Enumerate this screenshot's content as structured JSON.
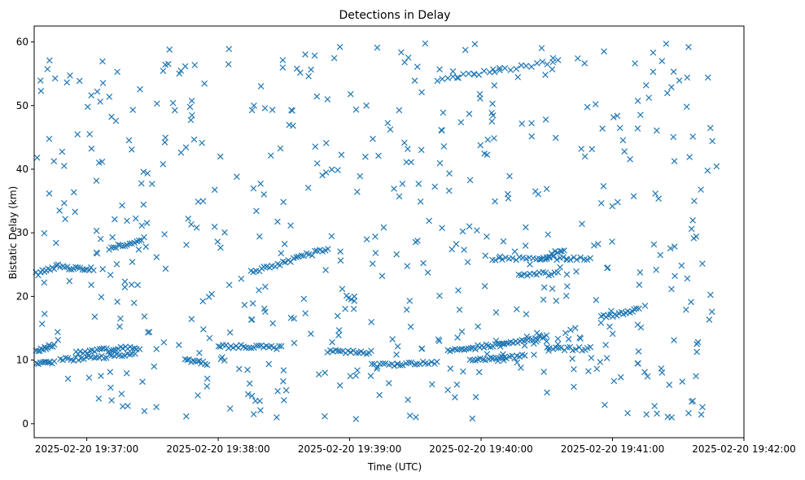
{
  "chart_data": {
    "type": "scatter",
    "title": "Detections in Delay",
    "xlabel": "Time (UTC)",
    "ylabel": "Bistatic Delay (km)",
    "marker": "x",
    "color": "#1f77b4",
    "grid": false,
    "x_tick_labels": [
      "2025-02-20 19:37:00",
      "2025-02-20 19:38:00",
      "2025-02-20 19:39:00",
      "2025-02-20 19:40:00",
      "2025-02-20 19:41:00",
      "2025-02-20 19:42:00"
    ],
    "y_ticks": [
      0,
      10,
      20,
      30,
      40,
      50,
      60
    ],
    "x_range": [
      "2025-02-20 19:36:36",
      "2025-02-20 19:42:00"
    ],
    "ylim": [
      -2.2,
      62.5
    ],
    "tracks": [
      {
        "t_start": "2025-02-20 19:36:37",
        "t_end": "2025-02-20 19:36:45",
        "delay_start": 11.5,
        "delay_end": 12.3,
        "points": 12
      },
      {
        "t_start": "2025-02-20 19:36:37",
        "t_end": "2025-02-20 19:36:45",
        "delay_start": 9.2,
        "delay_end": 9.8,
        "points": 10
      },
      {
        "t_start": "2025-02-20 19:36:37",
        "t_end": "2025-02-20 19:36:47",
        "delay_start": 23.5,
        "delay_end": 24.8,
        "points": 12
      },
      {
        "t_start": "2025-02-20 19:36:48",
        "t_end": "2025-02-20 19:37:03",
        "delay_start": 24.5,
        "delay_end": 24.3,
        "points": 16
      },
      {
        "t_start": "2025-02-20 19:36:48",
        "t_end": "2025-02-20 19:37:22",
        "delay_start": 10.0,
        "delay_end": 10.9,
        "points": 30
      },
      {
        "t_start": "2025-02-20 19:36:55",
        "t_end": "2025-02-20 19:37:24",
        "delay_start": 11.2,
        "delay_end": 12.0,
        "points": 28
      },
      {
        "t_start": "2025-02-20 19:37:10",
        "t_end": "2025-02-20 19:37:26",
        "delay_start": 27.5,
        "delay_end": 29.0,
        "points": 16
      },
      {
        "t_start": "2025-02-20 19:37:45",
        "t_end": "2025-02-20 19:37:55",
        "delay_start": 10.0,
        "delay_end": 9.5,
        "points": 12
      },
      {
        "t_start": "2025-02-20 19:38:15",
        "t_end": "2025-02-20 19:38:50",
        "delay_start": 23.8,
        "delay_end": 27.5,
        "points": 30
      },
      {
        "t_start": "2025-02-20 19:38:00",
        "t_end": "2025-02-20 19:38:29",
        "delay_start": 12.2,
        "delay_end": 12.0,
        "points": 26
      },
      {
        "t_start": "2025-02-20 19:38:50",
        "t_end": "2025-02-20 19:39:10",
        "delay_start": 11.5,
        "delay_end": 11.2,
        "points": 18
      },
      {
        "t_start": "2025-02-20 19:39:10",
        "t_end": "2025-02-20 19:39:40",
        "delay_start": 9.2,
        "delay_end": 9.6,
        "points": 24
      },
      {
        "t_start": "2025-02-20 19:39:45",
        "t_end": "2025-02-20 19:40:30",
        "delay_start": 11.4,
        "delay_end": 13.6,
        "points": 45
      },
      {
        "t_start": "2025-02-20 19:39:55",
        "t_end": "2025-02-20 19:40:20",
        "delay_start": 9.8,
        "delay_end": 10.7,
        "points": 22
      },
      {
        "t_start": "2025-02-20 19:40:05",
        "t_end": "2025-02-20 19:40:50",
        "delay_start": 26.0,
        "delay_end": 26.0,
        "points": 30
      },
      {
        "t_start": "2025-02-20 19:40:27",
        "t_end": "2025-02-20 19:40:38",
        "delay_start": 25.6,
        "delay_end": 27.5,
        "points": 12
      },
      {
        "t_start": "2025-02-20 19:40:17",
        "t_end": "2025-02-20 19:40:35",
        "delay_start": 23.5,
        "delay_end": 23.6,
        "points": 14
      },
      {
        "t_start": "2025-02-20 19:39:40",
        "t_end": "2025-02-20 19:40:35",
        "delay_start": 54.0,
        "delay_end": 57.0,
        "points": 24
      },
      {
        "t_start": "2025-02-20 19:40:30",
        "t_end": "2025-02-20 19:40:50",
        "delay_start": 11.8,
        "delay_end": 11.8,
        "points": 16
      },
      {
        "t_start": "2025-02-20 19:40:55",
        "t_end": "2025-02-20 19:41:12",
        "delay_start": 16.7,
        "delay_end": 18.0,
        "points": 18
      },
      {
        "t_start": "2025-02-20 19:40:20",
        "t_end": "2025-02-20 19:40:45",
        "delay_start": 12.5,
        "delay_end": 13.5,
        "points": 6
      }
    ],
    "scattered_detections": {
      "t_start": "2025-02-20 19:36:37",
      "t_end": "2025-02-20 19:41:49",
      "delay_min": 0.7,
      "delay_max": 59.8,
      "points": 560
    }
  }
}
